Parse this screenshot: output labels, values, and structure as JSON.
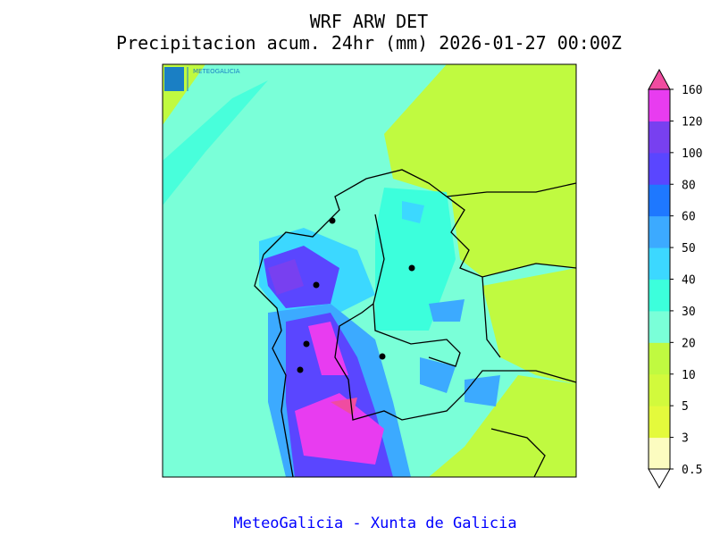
{
  "title": "WRF ARW DET",
  "subtitle": "Precipitacion acum. 24hr (mm) 2026-01-27 00:00Z",
  "logo_text": "METEOGALICIA",
  "colorbar": {
    "levels": [
      "0.5",
      "3",
      "5",
      "10",
      "20",
      "30",
      "40",
      "50",
      "60",
      "80",
      "100",
      "120",
      "160"
    ],
    "colors": [
      "#fcfcc0",
      "#e4fa3c",
      "#d2fa3c",
      "#c0fa40",
      "#7affd8",
      "#3cffdc",
      "#3cd8ff",
      "#3caaff",
      "#1e78ff",
      "#5a46ff",
      "#7840f0",
      "#e83cf0"
    ],
    "under_color": "#ffffff",
    "over_color": "#f04ca0"
  },
  "footer": "MeteoGalicia - Xunta de Galicia"
}
